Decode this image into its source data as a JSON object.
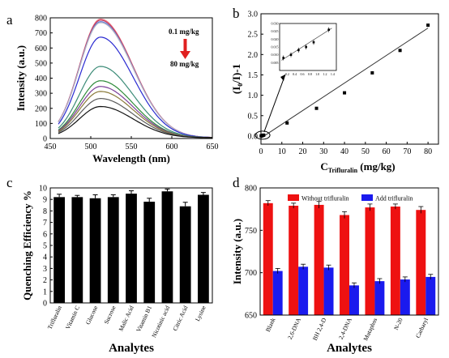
{
  "chart_data": [
    {
      "panel": "a",
      "type": "line",
      "xlabel": "Wavelength (nm)",
      "ylabel": "Intensity (a.u.)",
      "xlim": [
        450,
        650
      ],
      "ylim": [
        0,
        800
      ],
      "xticks": [
        450,
        500,
        550,
        600,
        650
      ],
      "yticks": [
        0,
        100,
        200,
        300,
        400,
        500,
        600,
        700,
        800
      ],
      "annotation_top": "0.1 mg/kg",
      "annotation_bottom": "80 mg/kg",
      "annotation_arrow_color": "#e02020",
      "series": [
        {
          "color": "#f07a86",
          "peak": 792
        },
        {
          "color": "#c33b5d",
          "peak": 785
        },
        {
          "color": "#5b7bd8",
          "peak": 775
        },
        {
          "color": "#b9b9c5",
          "peak": 768
        },
        {
          "color": "#2a2ad1",
          "peak": 672
        },
        {
          "color": "#3d8c78",
          "peak": 478
        },
        {
          "color": "#2e8b3a",
          "peak": 383
        },
        {
          "color": "#7c3f99",
          "peak": 345
        },
        {
          "color": "#8a7a3a",
          "peak": 312
        },
        {
          "color": "#5a5a5a",
          "peak": 265
        },
        {
          "color": "#111111",
          "peak": 212
        }
      ]
    },
    {
      "panel": "b",
      "type": "scatter",
      "xlabel_main": "C",
      "xlabel_sub": "Trifluralin",
      "xlabel_unit": " (mg/kg)",
      "ylabel_main": "(I",
      "ylabel_sub": "0",
      "ylabel_rest": "/I)-1",
      "xlim": [
        0,
        85
      ],
      "ylim": [
        -0.2,
        3.0
      ],
      "xticks": [
        0,
        10,
        20,
        30,
        40,
        50,
        60,
        70,
        80
      ],
      "yticks": [
        0.0,
        0.5,
        1.0,
        1.5,
        2.0,
        2.5,
        3.0
      ],
      "x": [
        0.1,
        0.3,
        0.5,
        0.8,
        1.0,
        1.3,
        12.5,
        26.6,
        40.0,
        53.3,
        66.6,
        80.0
      ],
      "y": [
        0.003,
        0.006,
        0.01,
        0.014,
        0.018,
        0.023,
        0.32,
        0.68,
        1.06,
        1.55,
        2.1,
        2.72
      ],
      "fit": {
        "x": [
          0,
          80
        ],
        "y": [
          -0.05,
          2.65
        ]
      },
      "inset": {
        "xlim": [
          0.0,
          1.5
        ],
        "ylim": [
          0.0,
          0.03
        ],
        "xticks": [
          0.2,
          0.4,
          0.6,
          0.8,
          1.0,
          1.2,
          1.4
        ],
        "yticks": [
          0.005,
          0.01,
          0.015,
          0.02,
          0.025,
          0.03
        ],
        "xtick_labels": [
          "0.2",
          "0.4",
          "0.6",
          "0.8",
          "1.0",
          "1.2",
          "1.4"
        ],
        "ytick_labels": [
          "0.005",
          "0.010",
          "0.015",
          "0.020",
          "0.025",
          "0.030"
        ],
        "x": [
          0.1,
          0.3,
          0.5,
          0.7,
          0.9,
          1.3
        ],
        "y": [
          0.008,
          0.01,
          0.013,
          0.015,
          0.018,
          0.026
        ]
      }
    },
    {
      "panel": "c",
      "type": "bar",
      "xlabel": "Analytes",
      "ylabel": "Quenching Efficiency %",
      "ylim": [
        0,
        10
      ],
      "yticks": [
        0,
        1,
        2,
        3,
        4,
        5,
        6,
        7,
        8,
        9,
        10
      ],
      "categories": [
        "Trifluralin",
        "Vitamin C",
        "Glucose",
        "Sucrose",
        "Malic Acid",
        "Vitamin B1",
        "Nicotinic acid",
        "Citric Acid",
        "Lysine"
      ],
      "values": [
        9.2,
        9.2,
        9.1,
        9.2,
        9.5,
        8.8,
        9.7,
        8.4,
        9.4
      ],
      "errors": [
        0.25,
        0.15,
        0.3,
        0.2,
        0.25,
        0.3,
        0.2,
        0.35,
        0.2
      ],
      "bar_color": "#000000"
    },
    {
      "panel": "d",
      "type": "bar",
      "xlabel": "Analytes",
      "ylabel": "Intensity (a.u.)",
      "ylim": [
        650,
        800
      ],
      "yticks": [
        650,
        700,
        750,
        800
      ],
      "categories": [
        "Blank",
        "2,6-DNA",
        "BH 2,4-D",
        "2,4-DNA",
        "Mutaphos",
        "N-20",
        "Carbaryl"
      ],
      "series": [
        {
          "name": "Without trifluralin",
          "color": "#ee1111",
          "values": [
            782,
            779,
            780,
            768,
            777,
            778,
            774
          ],
          "errors": [
            3,
            3,
            4,
            4,
            4,
            3,
            4
          ]
        },
        {
          "name": "Add trifluralin",
          "color": "#1a1aee",
          "values": [
            702,
            707,
            706,
            685,
            690,
            692,
            695
          ],
          "errors": [
            3,
            3,
            3,
            3,
            3,
            3,
            3
          ]
        }
      ],
      "legend_placement": "top"
    }
  ]
}
